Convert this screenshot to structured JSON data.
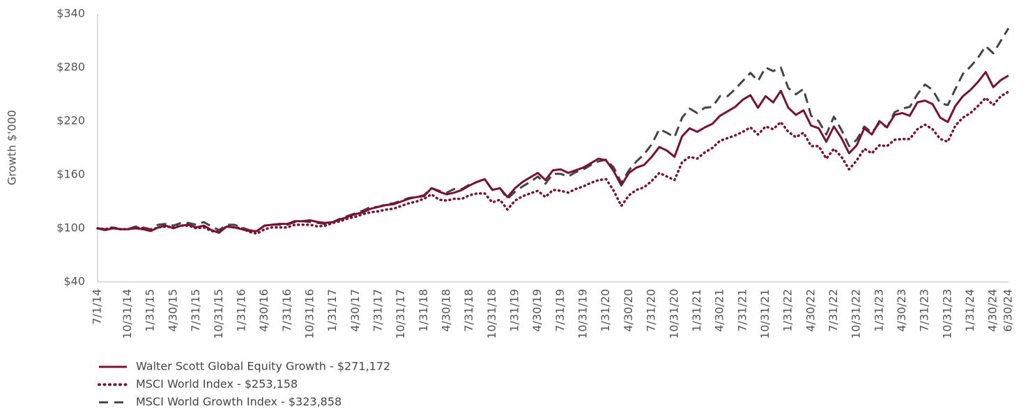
{
  "chart_data": {
    "type": "line",
    "y_label": "Growth $'000",
    "categories": [
      "7/1/14",
      null,
      null,
      null,
      "10/31/14",
      null,
      null,
      "1/31/15",
      null,
      null,
      "4/30/15",
      null,
      null,
      "7/31/15",
      null,
      null,
      "10/31/15",
      null,
      null,
      "1/31/16",
      null,
      null,
      "4/30/16",
      null,
      null,
      "7/31/16",
      null,
      null,
      "10/31/16",
      null,
      null,
      "1/31/17",
      null,
      null,
      "4/30/17",
      null,
      null,
      "7/31/17",
      null,
      null,
      "10/31/17",
      null,
      null,
      "1/31/18",
      null,
      null,
      "4/30/18",
      null,
      null,
      "7/31/18",
      null,
      null,
      "10/31/18",
      null,
      null,
      "1/31/19",
      null,
      null,
      "4/30/19",
      null,
      null,
      "7/31/19",
      null,
      null,
      "10/31/19",
      null,
      null,
      "1/31/20",
      null,
      null,
      "4/30/20",
      null,
      null,
      "7/31/20",
      null,
      null,
      "10/31/20",
      null,
      null,
      "1/31/21",
      null,
      null,
      "4/30/21",
      null,
      null,
      "7/31/21",
      null,
      null,
      "10/31/21",
      null,
      null,
      "1/31/22",
      null,
      null,
      "4/30/22",
      null,
      null,
      "7/31/22",
      null,
      null,
      "10/31/22",
      null,
      null,
      "1/31/23",
      null,
      null,
      "4/30/23",
      null,
      null,
      "7/31/23",
      null,
      null,
      "10/31/23",
      null,
      null,
      "1/31/24",
      null,
      null,
      "4/30/24",
      null,
      "6/30/24"
    ],
    "series": [
      {
        "name": "Walter Scott Global Equity Growth - $271,172",
        "color": "#7a1035",
        "style": "solid",
        "values": [
          100,
          98,
          100,
          99,
          99,
          100,
          99,
          97,
          101,
          103,
          100,
          103,
          104,
          101,
          103,
          98,
          95,
          102,
          101,
          99,
          97,
          97,
          103,
          104,
          105,
          105,
          108,
          108,
          109,
          107,
          106,
          107,
          110,
          113,
          116,
          118,
          122,
          124,
          126,
          127,
          130,
          133,
          135,
          136,
          145,
          141,
          138,
          140,
          143,
          148,
          152,
          155,
          143,
          145,
          135,
          145,
          152,
          157,
          162,
          154,
          165,
          166,
          162,
          165,
          168,
          173,
          178,
          176,
          164,
          148,
          162,
          168,
          171,
          180,
          191,
          187,
          180,
          203,
          212,
          208,
          213,
          217,
          226,
          231,
          236,
          244,
          249,
          235,
          248,
          241,
          254,
          235,
          227,
          232,
          215,
          212,
          197,
          214,
          201,
          184,
          193,
          212,
          205,
          220,
          213,
          227,
          229,
          226,
          241,
          243,
          239,
          224,
          219,
          237,
          248,
          255,
          264,
          275,
          258,
          266,
          271
        ]
      },
      {
        "name": "MSCI World Index - $253,158",
        "color": "#7a1035",
        "style": "dotted",
        "values": [
          100,
          99,
          101,
          99,
          99,
          101,
          100,
          98,
          101,
          102,
          101,
          103,
          103,
          100,
          101,
          97,
          96,
          102,
          101,
          100,
          96,
          94,
          99,
          101,
          101,
          101,
          104,
          104,
          104,
          102,
          103,
          106,
          108,
          111,
          113,
          116,
          118,
          119,
          121,
          122,
          125,
          128,
          130,
          133,
          138,
          132,
          131,
          133,
          133,
          137,
          139,
          139,
          129,
          132,
          121,
          131,
          136,
          139,
          142,
          135,
          143,
          142,
          140,
          144,
          147,
          151,
          154,
          155,
          142,
          125,
          137,
          143,
          146,
          153,
          162,
          158,
          154,
          174,
          180,
          178,
          185,
          190,
          198,
          201,
          204,
          208,
          213,
          205,
          214,
          211,
          219,
          208,
          202,
          207,
          192,
          192,
          178,
          189,
          180,
          166,
          176,
          189,
          184,
          193,
          192,
          199,
          200,
          200,
          211,
          216,
          211,
          200,
          197,
          215,
          224,
          229,
          237,
          246,
          238,
          248,
          253
        ]
      },
      {
        "name": "MSCI World Growth Index - $323,858",
        "color": "#444444",
        "style": "dashed",
        "values": [
          100,
          99,
          101,
          99,
          99,
          102,
          101,
          99,
          104,
          105,
          103,
          106,
          106,
          104,
          107,
          102,
          98,
          104,
          104,
          101,
          98,
          97,
          103,
          104,
          104,
          104,
          107,
          108,
          107,
          106,
          105,
          107,
          111,
          114,
          117,
          120,
          124,
          124,
          127,
          128,
          131,
          134,
          135,
          137,
          145,
          142,
          140,
          144,
          144,
          149,
          152,
          155,
          143,
          145,
          133,
          141,
          147,
          152,
          158,
          150,
          161,
          161,
          158,
          163,
          166,
          171,
          175,
          177,
          168,
          151,
          165,
          175,
          183,
          194,
          211,
          207,
          202,
          224,
          234,
          229,
          235,
          236,
          248,
          248,
          256,
          265,
          274,
          265,
          280,
          276,
          280,
          257,
          250,
          256,
          226,
          220,
          205,
          225,
          210,
          192,
          199,
          214,
          207,
          218,
          213,
          230,
          234,
          236,
          250,
          261,
          255,
          240,
          238,
          256,
          273,
          281,
          291,
          304,
          296,
          310,
          324
        ]
      }
    ],
    "ylim": [
      40,
      340
    ],
    "yticks": [
      {
        "value": 40,
        "label": "$40"
      },
      {
        "value": 100,
        "label": "$100"
      },
      {
        "value": 160,
        "label": "$160"
      },
      {
        "value": 220,
        "label": "$220"
      },
      {
        "value": 280,
        "label": "$280"
      },
      {
        "value": 340,
        "label": "$340"
      }
    ],
    "grid": false
  }
}
